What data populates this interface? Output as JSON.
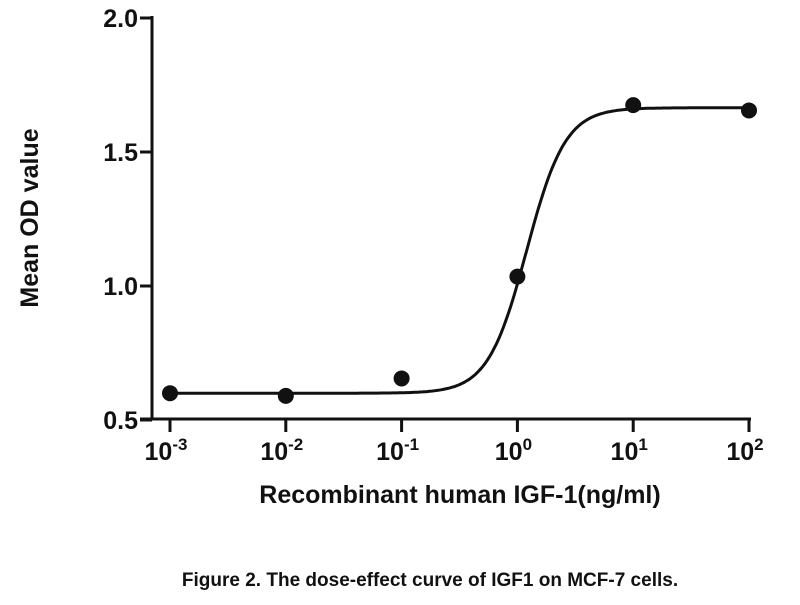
{
  "chart_data": {
    "type": "scatter",
    "title": "",
    "caption": "Figure 2. The dose-effect curve of IGF1 on MCF-7 cells.",
    "xlabel": "Recombinant human IGF-1(ng/ml)",
    "ylabel": "Mean OD value",
    "xscale": "log",
    "xlim": [
      0.001,
      100
    ],
    "ylim": [
      0.5,
      2.0
    ],
    "x_ticks": [
      {
        "base": "10",
        "exp": "-3",
        "value": 0.001
      },
      {
        "base": "10",
        "exp": "-2",
        "value": 0.01
      },
      {
        "base": "10",
        "exp": "-1",
        "value": 0.1
      },
      {
        "base": "10",
        "exp": "0",
        "value": 1
      },
      {
        "base": "10",
        "exp": "1",
        "value": 10
      },
      {
        "base": "10",
        "exp": "2",
        "value": 100
      }
    ],
    "y_ticks": [
      "0.5",
      "1.0",
      "1.5",
      "2.0"
    ],
    "grid": false,
    "series": [
      {
        "name": "IGF-1",
        "x": [
          0.001,
          0.01,
          0.1,
          1,
          10,
          100
        ],
        "y": [
          0.6,
          0.59,
          0.655,
          1.035,
          1.675,
          1.655
        ]
      }
    ],
    "fit": {
      "model": "four-parameter logistic",
      "bottom": 0.6,
      "top": 1.665,
      "log_ec50": 0.08,
      "hill": 2.6
    }
  }
}
